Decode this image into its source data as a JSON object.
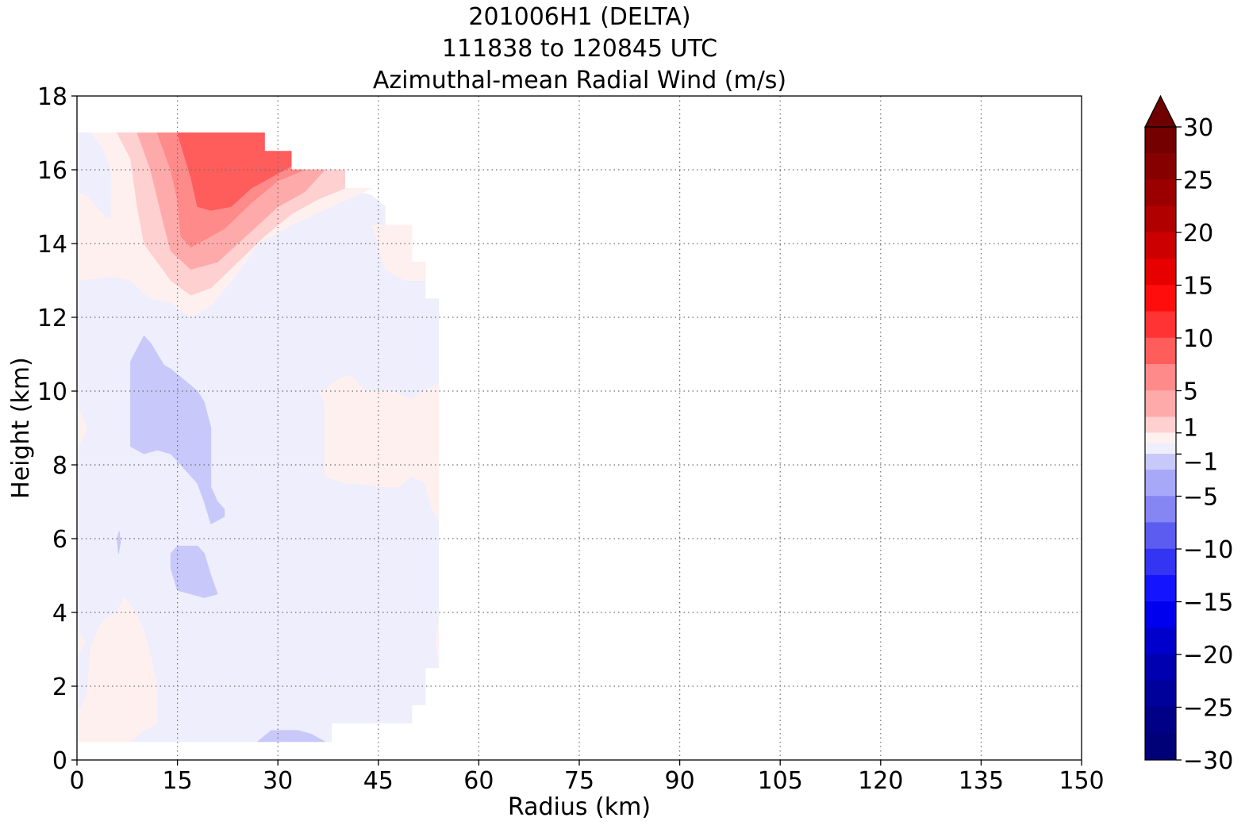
{
  "chart_data": {
    "type": "heatmap",
    "title": [
      "201006H1 (DELTA)",
      "111838 to 120845 UTC",
      "Azimuthal-mean Radial Wind (m/s)"
    ],
    "xlabel": "Radius (km)",
    "ylabel": "Height (km)",
    "xlim": [
      0,
      150
    ],
    "ylim": [
      0,
      18
    ],
    "xticks": [
      0,
      15,
      30,
      45,
      60,
      75,
      90,
      105,
      120,
      135,
      150
    ],
    "yticks": [
      0,
      2,
      4,
      6,
      8,
      10,
      12,
      14,
      16,
      18
    ],
    "grid": true,
    "colorbar": {
      "range": [
        -30,
        30
      ],
      "ticks": [
        30,
        25,
        20,
        15,
        10,
        5,
        1,
        -1,
        -5,
        -10,
        -15,
        -20,
        -25,
        -30
      ],
      "tick_labels": [
        "30",
        "25",
        "20",
        "15",
        "10",
        "5",
        "1",
        "−1",
        "−5",
        "−10",
        "−15",
        "−20",
        "−25",
        "−30"
      ],
      "extend": "max",
      "over_color": "#6e0000",
      "bands": [
        {
          "from": 27.5,
          "to": 30,
          "color": "#750000"
        },
        {
          "from": 25,
          "to": 27.5,
          "color": "#870000"
        },
        {
          "from": 22.5,
          "to": 25,
          "color": "#9a0000"
        },
        {
          "from": 20,
          "to": 22.5,
          "color": "#b00000"
        },
        {
          "from": 17.5,
          "to": 20,
          "color": "#cc0000"
        },
        {
          "from": 15,
          "to": 17.5,
          "color": "#e60000"
        },
        {
          "from": 12.5,
          "to": 15,
          "color": "#ff0d0d"
        },
        {
          "from": 10,
          "to": 12.5,
          "color": "#ff3333"
        },
        {
          "from": 7.5,
          "to": 10,
          "color": "#ff5c5c"
        },
        {
          "from": 5,
          "to": 7.5,
          "color": "#ff8a8a"
        },
        {
          "from": 2.5,
          "to": 5,
          "color": "#ffaaaa"
        },
        {
          "from": 1,
          "to": 2.5,
          "color": "#ffd0d0"
        },
        {
          "from": 0,
          "to": 1,
          "color": "#fff0f0"
        },
        {
          "from": -1,
          "to": 0,
          "color": "#eeeefc"
        },
        {
          "from": -2.5,
          "to": -1,
          "color": "#c8c8fa"
        },
        {
          "from": -5,
          "to": -2.5,
          "color": "#a8a8f8"
        },
        {
          "from": -7.5,
          "to": -5,
          "color": "#8585f3"
        },
        {
          "from": -10,
          "to": -7.5,
          "color": "#5c5cf0"
        },
        {
          "from": -12.5,
          "to": -10,
          "color": "#3434f3"
        },
        {
          "from": -15,
          "to": -12.5,
          "color": "#1414ff"
        },
        {
          "from": -17.5,
          "to": -15,
          "color": "#0000ee"
        },
        {
          "from": -20,
          "to": -17.5,
          "color": "#0000cc"
        },
        {
          "from": -22.5,
          "to": -20,
          "color": "#0000b0"
        },
        {
          "from": -25,
          "to": -22.5,
          "color": "#00009a"
        },
        {
          "from": -27.5,
          "to": -25,
          "color": "#000087"
        },
        {
          "from": -30,
          "to": -27.5,
          "color": "#000077"
        }
      ]
    },
    "regions": [
      {
        "name": "weak-inflow",
        "color": "#eeeefc",
        "points": [
          [
            0,
            0.5
          ],
          [
            38,
            0.5
          ],
          [
            38,
            1
          ],
          [
            50,
            1
          ],
          [
            50,
            1.5
          ],
          [
            52,
            1.5
          ],
          [
            52,
            2.5
          ],
          [
            54,
            2.5
          ],
          [
            54,
            12.5
          ],
          [
            52,
            12.5
          ],
          [
            52,
            13.5
          ],
          [
            50,
            13.5
          ],
          [
            50,
            14.5
          ],
          [
            46,
            14.5
          ],
          [
            46,
            15
          ],
          [
            44,
            15.3
          ],
          [
            40,
            15.5
          ],
          [
            40,
            16
          ],
          [
            32,
            16
          ],
          [
            32,
            16.5
          ],
          [
            28,
            16.5
          ],
          [
            28,
            17
          ],
          [
            0,
            17
          ]
        ]
      },
      {
        "name": "weak-outflow-upper",
        "color": "#fff0f0",
        "points": [
          [
            2,
            17
          ],
          [
            28,
            17
          ],
          [
            28,
            16.5
          ],
          [
            32,
            16.5
          ],
          [
            32,
            16
          ],
          [
            40,
            16
          ],
          [
            40,
            15.5
          ],
          [
            44,
            15.5
          ],
          [
            38,
            15
          ],
          [
            32,
            14.5
          ],
          [
            27,
            14
          ],
          [
            24,
            13.2
          ],
          [
            20,
            12.3
          ],
          [
            17,
            12
          ],
          [
            14,
            12.4
          ],
          [
            11,
            12.5
          ],
          [
            8,
            13
          ],
          [
            5,
            13.1
          ],
          [
            0,
            13
          ],
          [
            0,
            15.5
          ],
          [
            2,
            15.5
          ],
          [
            2,
            16
          ],
          [
            0,
            16.5
          ],
          [
            0,
            17
          ]
        ]
      },
      {
        "name": "weak-inflow-upper-left",
        "color": "#eeeefc",
        "points": [
          [
            0,
            17
          ],
          [
            2,
            17
          ],
          [
            4,
            16.5
          ],
          [
            5,
            16
          ],
          [
            5,
            14.7
          ],
          [
            4,
            14.8
          ],
          [
            3,
            15
          ],
          [
            1.5,
            15.3
          ],
          [
            0,
            15.4
          ]
        ]
      },
      {
        "name": "outflow-1",
        "color": "#ffd0d0",
        "points": [
          [
            6,
            17
          ],
          [
            28,
            17
          ],
          [
            28,
            16.5
          ],
          [
            32,
            16.5
          ],
          [
            32,
            16
          ],
          [
            40,
            16
          ],
          [
            40,
            15.5
          ],
          [
            36,
            15.2
          ],
          [
            32,
            14.8
          ],
          [
            28,
            14.2
          ],
          [
            24,
            13.5
          ],
          [
            20,
            12.8
          ],
          [
            17,
            12.6
          ],
          [
            14,
            13
          ],
          [
            12,
            13.5
          ],
          [
            10,
            14
          ],
          [
            9,
            15
          ],
          [
            8,
            16.3
          ]
        ]
      },
      {
        "name": "outflow-2",
        "color": "#ffaaaa",
        "points": [
          [
            9,
            17
          ],
          [
            28,
            17
          ],
          [
            28,
            16.5
          ],
          [
            32,
            16.5
          ],
          [
            32,
            16
          ],
          [
            37,
            16
          ],
          [
            34,
            15.4
          ],
          [
            30,
            15
          ],
          [
            27,
            14.5
          ],
          [
            24,
            14
          ],
          [
            21,
            13.5
          ],
          [
            17,
            13.3
          ],
          [
            14,
            13.8
          ],
          [
            13,
            14.5
          ],
          [
            11,
            16
          ]
        ]
      },
      {
        "name": "outflow-3",
        "color": "#ff8a8a",
        "points": [
          [
            12,
            17
          ],
          [
            28,
            17
          ],
          [
            28,
            16.5
          ],
          [
            32,
            16.5
          ],
          [
            32,
            16
          ],
          [
            34,
            16
          ],
          [
            30,
            15.7
          ],
          [
            26,
            15.1
          ],
          [
            22,
            14.4
          ],
          [
            17,
            13.9
          ],
          [
            15.5,
            14.2
          ],
          [
            15,
            15.2
          ],
          [
            14,
            16
          ]
        ]
      },
      {
        "name": "outflow-4",
        "color": "#ff5c5c",
        "points": [
          [
            15,
            17
          ],
          [
            28,
            17
          ],
          [
            28,
            16.5
          ],
          [
            32,
            16.5
          ],
          [
            32,
            16.1
          ],
          [
            29,
            15.8
          ],
          [
            26,
            15.5
          ],
          [
            23,
            15
          ],
          [
            20,
            14.9
          ],
          [
            18,
            15
          ],
          [
            17,
            15.8
          ]
        ]
      },
      {
        "name": "outflow-mid-right",
        "color": "#fff0f0",
        "points": [
          [
            37,
            10
          ],
          [
            38,
            10.2
          ],
          [
            40,
            10.4
          ],
          [
            41,
            10.4
          ],
          [
            43,
            10
          ],
          [
            47,
            10
          ],
          [
            50,
            9.8
          ],
          [
            52,
            10
          ],
          [
            54,
            10.2
          ],
          [
            54,
            6.5
          ],
          [
            53,
            6.8
          ],
          [
            52,
            7.5
          ],
          [
            50,
            7.7
          ],
          [
            48,
            7.4
          ],
          [
            45,
            7.4
          ],
          [
            42,
            7.5
          ],
          [
            40,
            7.5
          ],
          [
            37,
            7.7
          ],
          [
            37,
            9.7
          ],
          [
            36,
            10
          ]
        ]
      },
      {
        "name": "outflow-low-left",
        "color": "#fff0f0",
        "points": [
          [
            0,
            0.5
          ],
          [
            8,
            0.5
          ],
          [
            10,
            0.8
          ],
          [
            12,
            1
          ],
          [
            12,
            2
          ],
          [
            11,
            2.8
          ],
          [
            10,
            3.5
          ],
          [
            9,
            3.9
          ],
          [
            8,
            4.2
          ],
          [
            7,
            4.4
          ],
          [
            6,
            4
          ],
          [
            4,
            3.8
          ],
          [
            3,
            3.5
          ],
          [
            2,
            3
          ],
          [
            1.5,
            1.8
          ],
          [
            0.5,
            1.4
          ],
          [
            0,
            1.4
          ]
        ]
      },
      {
        "name": "outflow-edge-lower",
        "color": "#fff0f0",
        "points": [
          [
            0,
            3.5
          ],
          [
            1.3,
            3.2
          ],
          [
            0,
            2.8
          ]
        ]
      },
      {
        "name": "outflow-edge-mid",
        "color": "#fff0f0",
        "points": [
          [
            0,
            9.6
          ],
          [
            1.5,
            9
          ],
          [
            0,
            8.4
          ]
        ]
      },
      {
        "name": "outflow-edge-bottom-right",
        "color": "#fff0f0",
        "points": [
          [
            54,
            3.8
          ],
          [
            53.6,
            3.2
          ],
          [
            54,
            2.6
          ]
        ]
      },
      {
        "name": "outflow-edge-upper-right",
        "color": "#fff0f0",
        "points": [
          [
            44,
            14.5
          ],
          [
            46,
            14.5
          ],
          [
            50,
            14.5
          ],
          [
            50,
            13.5
          ],
          [
            52,
            13.5
          ],
          [
            52,
            13
          ],
          [
            49,
            13
          ],
          [
            46,
            13.3
          ],
          [
            45,
            14
          ]
        ]
      },
      {
        "name": "inflow-1-mid",
        "color": "#c8c8fa",
        "points": [
          [
            8,
            8.5
          ],
          [
            8,
            10.8
          ],
          [
            10,
            11.5
          ],
          [
            11,
            11.3
          ],
          [
            13,
            10.7
          ],
          [
            14,
            10.6
          ],
          [
            16,
            10.3
          ],
          [
            18,
            10
          ],
          [
            19,
            9.7
          ],
          [
            20,
            9
          ],
          [
            20,
            8
          ],
          [
            20,
            7.4
          ],
          [
            21,
            7
          ],
          [
            22,
            6.8
          ],
          [
            22,
            6.6
          ],
          [
            20,
            6.4
          ],
          [
            19,
            7
          ],
          [
            18,
            7.5
          ],
          [
            16,
            7.9
          ],
          [
            14,
            8.3
          ],
          [
            12,
            8.4
          ],
          [
            10,
            8.3
          ],
          [
            9,
            8.4
          ]
        ]
      },
      {
        "name": "inflow-1-low",
        "color": "#c8c8fa",
        "points": [
          [
            14,
            5.2
          ],
          [
            14,
            5.6
          ],
          [
            15,
            5.8
          ],
          [
            18,
            5.8
          ],
          [
            19,
            5.6
          ],
          [
            20,
            5
          ],
          [
            21,
            4.5
          ],
          [
            19,
            4.4
          ],
          [
            17,
            4.5
          ],
          [
            15,
            4.6
          ]
        ]
      },
      {
        "name": "inflow-1-bottom",
        "color": "#c8c8fa",
        "points": [
          [
            27,
            0.5
          ],
          [
            37,
            0.5
          ],
          [
            35,
            0.7
          ],
          [
            33,
            0.8
          ],
          [
            29,
            0.8
          ]
        ]
      },
      {
        "name": "inflow-1-tiny",
        "color": "#c8c8fa",
        "points": [
          [
            6,
            6
          ],
          [
            6.3,
            6.2
          ],
          [
            6.5,
            5.9
          ],
          [
            6.2,
            5.6
          ]
        ]
      }
    ]
  }
}
